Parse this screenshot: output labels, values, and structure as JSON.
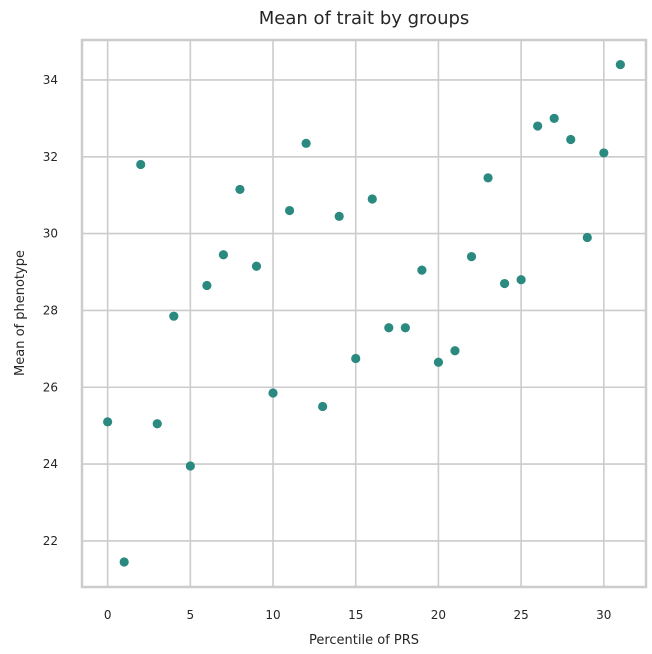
{
  "chart_data": {
    "type": "scatter",
    "title": "Mean of trait by groups",
    "xlabel": "Percentile of PRS",
    "ylabel": "Mean of phenotype",
    "xlim": [
      -1.55,
      32.55
    ],
    "ylim": [
      20.8,
      35.04
    ],
    "xticks": [
      0,
      5,
      10,
      15,
      20,
      25,
      30
    ],
    "yticks": [
      22,
      24,
      26,
      28,
      30,
      32,
      34
    ],
    "grid": true,
    "color": "#2a8a7f",
    "points": [
      {
        "x": 0,
        "y": 25.1
      },
      {
        "x": 1,
        "y": 21.45
      },
      {
        "x": 2,
        "y": 31.8
      },
      {
        "x": 3,
        "y": 25.05
      },
      {
        "x": 4,
        "y": 27.85
      },
      {
        "x": 5,
        "y": 23.95
      },
      {
        "x": 6,
        "y": 28.65
      },
      {
        "x": 7,
        "y": 29.45
      },
      {
        "x": 8,
        "y": 31.15
      },
      {
        "x": 9,
        "y": 29.15
      },
      {
        "x": 10,
        "y": 25.85
      },
      {
        "x": 11,
        "y": 30.6
      },
      {
        "x": 12,
        "y": 32.35
      },
      {
        "x": 13,
        "y": 25.5
      },
      {
        "x": 14,
        "y": 30.45
      },
      {
        "x": 15,
        "y": 26.75
      },
      {
        "x": 16,
        "y": 30.9
      },
      {
        "x": 17,
        "y": 27.55
      },
      {
        "x": 18,
        "y": 27.55
      },
      {
        "x": 19,
        "y": 29.05
      },
      {
        "x": 20,
        "y": 26.65
      },
      {
        "x": 21,
        "y": 26.95
      },
      {
        "x": 22,
        "y": 29.4
      },
      {
        "x": 23,
        "y": 31.45
      },
      {
        "x": 24,
        "y": 28.7
      },
      {
        "x": 25,
        "y": 28.8
      },
      {
        "x": 26,
        "y": 32.8
      },
      {
        "x": 27,
        "y": 33.0
      },
      {
        "x": 28,
        "y": 32.45
      },
      {
        "x": 29,
        "y": 29.9
      },
      {
        "x": 30,
        "y": 32.1
      },
      {
        "x": 31,
        "y": 34.4
      }
    ]
  }
}
